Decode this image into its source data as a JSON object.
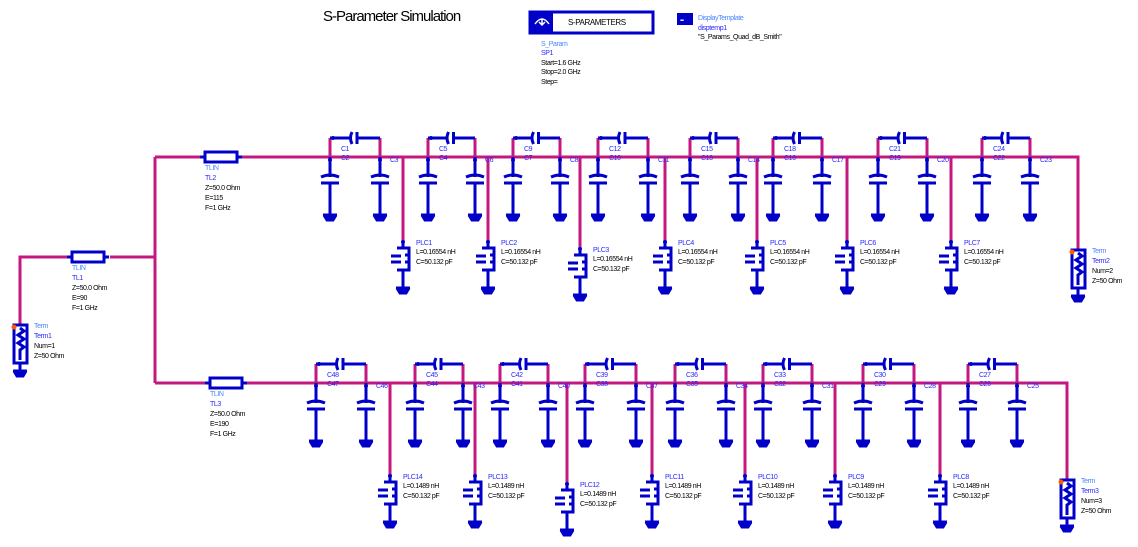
{
  "title": "S-Parameter Simulation",
  "sparam": {
    "box_label": "S-PARAMETERS",
    "type": "S_Param",
    "name": "SP1",
    "params": [
      "Start=1.6 GHz",
      "Stop=2.0 GHz",
      "Step="
    ]
  },
  "display_template": {
    "type": "DisplayTemplate",
    "name": "disptemp1",
    "value": "\"S_Params_Quad_dB_Smith\""
  },
  "tlines": [
    {
      "type": "TLIN",
      "name": "TL1",
      "params": [
        "Z=50.0 Ohm",
        "E=90",
        "F=1 GHz"
      ]
    },
    {
      "type": "TLIN",
      "name": "TL2",
      "params": [
        "Z=50.0 Ohm",
        "E=115",
        "F=1 GHz"
      ]
    },
    {
      "type": "TLIN",
      "name": "TL3",
      "params": [
        "Z=50.0 Ohm",
        "E=190",
        "F=1 GHz"
      ]
    }
  ],
  "terms": [
    {
      "type": "Term",
      "name": "Term1",
      "params": [
        "Num=1",
        "Z=50 Ohm"
      ]
    },
    {
      "type": "Term",
      "name": "Term2",
      "params": [
        "Num=2",
        "Z=50 Ohm"
      ]
    },
    {
      "type": "Term",
      "name": "Term3",
      "params": [
        "Num=3",
        "Z=50 Ohm"
      ]
    }
  ],
  "top_stages": [
    {
      "series": "C1",
      "shunt_left": "C2",
      "shunt_right": "C3"
    },
    {
      "series": "C5",
      "shunt_left": "C4",
      "shunt_right": "C6"
    },
    {
      "series": "C9",
      "shunt_left": "C7",
      "shunt_right": "C8"
    },
    {
      "series": "C12",
      "shunt_left": "C10",
      "shunt_right": "C11"
    },
    {
      "series": "C15",
      "shunt_left": "C13",
      "shunt_right": "C14"
    },
    {
      "series": "C18",
      "shunt_left": "C16",
      "shunt_right": "C17"
    },
    {
      "series": "C21",
      "shunt_left": "C19",
      "shunt_right": "C20"
    },
    {
      "series": "C24",
      "shunt_left": "C22",
      "shunt_right": "C23"
    }
  ],
  "bottom_stages": [
    {
      "series": "C48",
      "shunt_left": "C47",
      "shunt_right": "C46"
    },
    {
      "series": "C45",
      "shunt_left": "C44",
      "shunt_right": "C43"
    },
    {
      "series": "C42",
      "shunt_left": "C41",
      "shunt_right": "C40"
    },
    {
      "series": "C39",
      "shunt_left": "C38",
      "shunt_right": "C37"
    },
    {
      "series": "C36",
      "shunt_left": "C35",
      "shunt_right": "C34"
    },
    {
      "series": "C33",
      "shunt_left": "C32",
      "shunt_right": "C31"
    },
    {
      "series": "C30",
      "shunt_left": "C29",
      "shunt_right": "C28"
    },
    {
      "series": "C27",
      "shunt_left": "C26",
      "shunt_right": "C25"
    }
  ],
  "top_plcs": [
    {
      "name": "PLC1",
      "L": "L=0.16554 nH",
      "C": "C=50.132 pF"
    },
    {
      "name": "PLC2",
      "L": "L=0.16554 nH",
      "C": "C=50.132 pF"
    },
    {
      "name": "PLC3",
      "L": "L=0.16554 nH",
      "C": "C=50.132 pF"
    },
    {
      "name": "PLC4",
      "L": "L=0.16554 nH",
      "C": "C=50.132 pF"
    },
    {
      "name": "PLC5",
      "L": "L=0.16554 nH",
      "C": "C=50.132 pF"
    },
    {
      "name": "PLC6",
      "L": "L=0.16554 nH",
      "C": "C=50.132 pF"
    },
    {
      "name": "PLC7",
      "L": "L=0.16554 nH",
      "C": "C=50.132 pF"
    }
  ],
  "bottom_plcs": [
    {
      "name": "PLC14",
      "L": "L=0.1489 nH",
      "C": "C=50.132 pF"
    },
    {
      "name": "PLC13",
      "L": "L=0.1489 nH",
      "C": "C=50.132 pF"
    },
    {
      "name": "PLC12",
      "L": "L=0.1489 nH",
      "C": "C=50.132 pF"
    },
    {
      "name": "PLC11",
      "L": "L=0.1489 nH",
      "C": "C=50.132 pF"
    },
    {
      "name": "PLC10",
      "L": "L=0.1489 nH",
      "C": "C=50.132 pF"
    },
    {
      "name": "PLC9",
      "L": "L=0.1489 nH",
      "C": "C=50.132 pF"
    },
    {
      "name": "PLC8",
      "L": "L=0.1489 nH",
      "C": "C=50.132 pF"
    }
  ],
  "colors": {
    "wire": "#c4177f",
    "component": "#0000c8",
    "type_label": "#4a86ff",
    "name_label": "#2a2aff",
    "pin_marker": "#ff5a00"
  }
}
